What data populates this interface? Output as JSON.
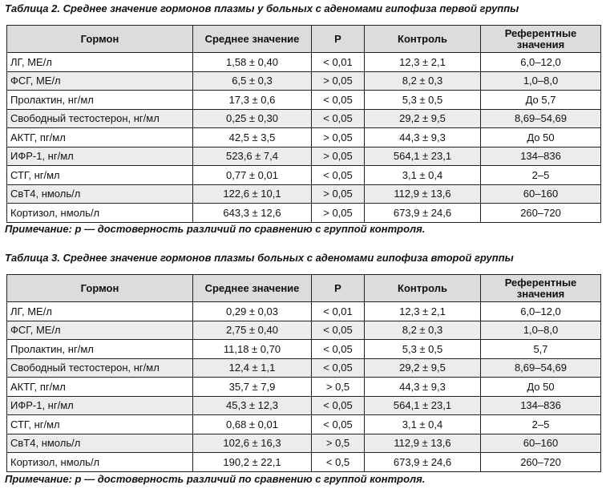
{
  "table2": {
    "caption": "Таблица 2. Среднее значение гормонов плазмы у больных с аденомами гипофиза первой группы",
    "headers": [
      "Гормон",
      "Среднее значение",
      "P",
      "Контроль",
      "Референтные значения"
    ],
    "rows": [
      [
        "ЛГ, МЕ/л",
        "1,58 ± 0,40",
        "< 0,01",
        "12,3 ± 2,1",
        "6,0–12,0"
      ],
      [
        "ФСГ, МЕ/л",
        "6,5 ± 0,3",
        "> 0,05",
        "8,2 ± 0,3",
        "1,0–8,0"
      ],
      [
        "Пролактин, нг/мл",
        "17,3 ± 0,6",
        "< 0,05",
        "5,3 ± 0,5",
        "До 5,7"
      ],
      [
        "Свободный тестостерон, нг/мл",
        "0,25 ± 0,30",
        "< 0,05",
        "29,2 ± 9,5",
        "8,69–54,69"
      ],
      [
        "АКТГ, пг/мл",
        "42,5 ± 3,5",
        "> 0,05",
        "44,3 ± 9,3",
        "До 50"
      ],
      [
        "ИФР-1, нг/мл",
        "523,6 ± 7,4",
        "> 0,05",
        "564,1 ± 23,1",
        "134–836"
      ],
      [
        "СТГ, нг/мл",
        "0,77 ± 0,01",
        "< 0,05",
        "3,1 ± 0,4",
        "2–5"
      ],
      [
        "СвТ4, нмоль/л",
        "122,6 ± 10,1",
        "> 0,05",
        "112,9 ± 13,6",
        "60–160"
      ],
      [
        "Кортизол, нмоль/л",
        "643,3 ± 12,6",
        "> 0,05",
        "673,9 ± 24,6",
        "260–720"
      ]
    ],
    "note": "Примечание: р — достоверность различий по сравнению с группой контроля."
  },
  "table3": {
    "caption": "Таблица 3. Среднее значение гормонов плазмы больных с аденомами гипофиза второй группы",
    "headers": [
      "Гормон",
      "Среднее значение",
      "P",
      "Контроль",
      "Референтные значения"
    ],
    "rows": [
      [
        "ЛГ, МЕ/л",
        "0,29 ± 0,03",
        "< 0,01",
        "12,3 ± 2,1",
        "6,0–12,0"
      ],
      [
        "ФСГ, МЕ/л",
        "2,75 ± 0,40",
        "< 0,05",
        "8,2 ± 0,3",
        "1,0–8,0"
      ],
      [
        "Пролактин, нг/мл",
        "11,18 ± 0,70",
        "< 0,05",
        "5,3 ± 0,5",
        "5,7"
      ],
      [
        "Свободный тестостерон, нг/мл",
        "12,4 ± 1,1",
        "< 0,05",
        "29,2 ± 9,5",
        "8,69–54,69"
      ],
      [
        "АКТГ, пг/мл",
        "35,7 ± 7,9",
        "> 0,5",
        "44,3 ± 9,3",
        "До 50"
      ],
      [
        "ИФР-1, нг/мл",
        "45,3 ± 12,3",
        "< 0,05",
        "564,1 ± 23,1",
        "134–836"
      ],
      [
        "СТГ, нг/мл",
        "0,68 ± 0,01",
        "< 0,05",
        "3,1 ± 0,4",
        "2–5"
      ],
      [
        "СвТ4, нмоль/л",
        "102,6 ± 16,3",
        "> 0,5",
        "112,9 ± 13,6",
        "60–160"
      ],
      [
        "Кортизол, нмоль/л",
        "190,2 ± 22,1",
        "< 0,5",
        "673,9 ± 24,6",
        "260–720"
      ]
    ],
    "note": "Примечание: р — достоверность различий по сравнению с группой контроля."
  }
}
